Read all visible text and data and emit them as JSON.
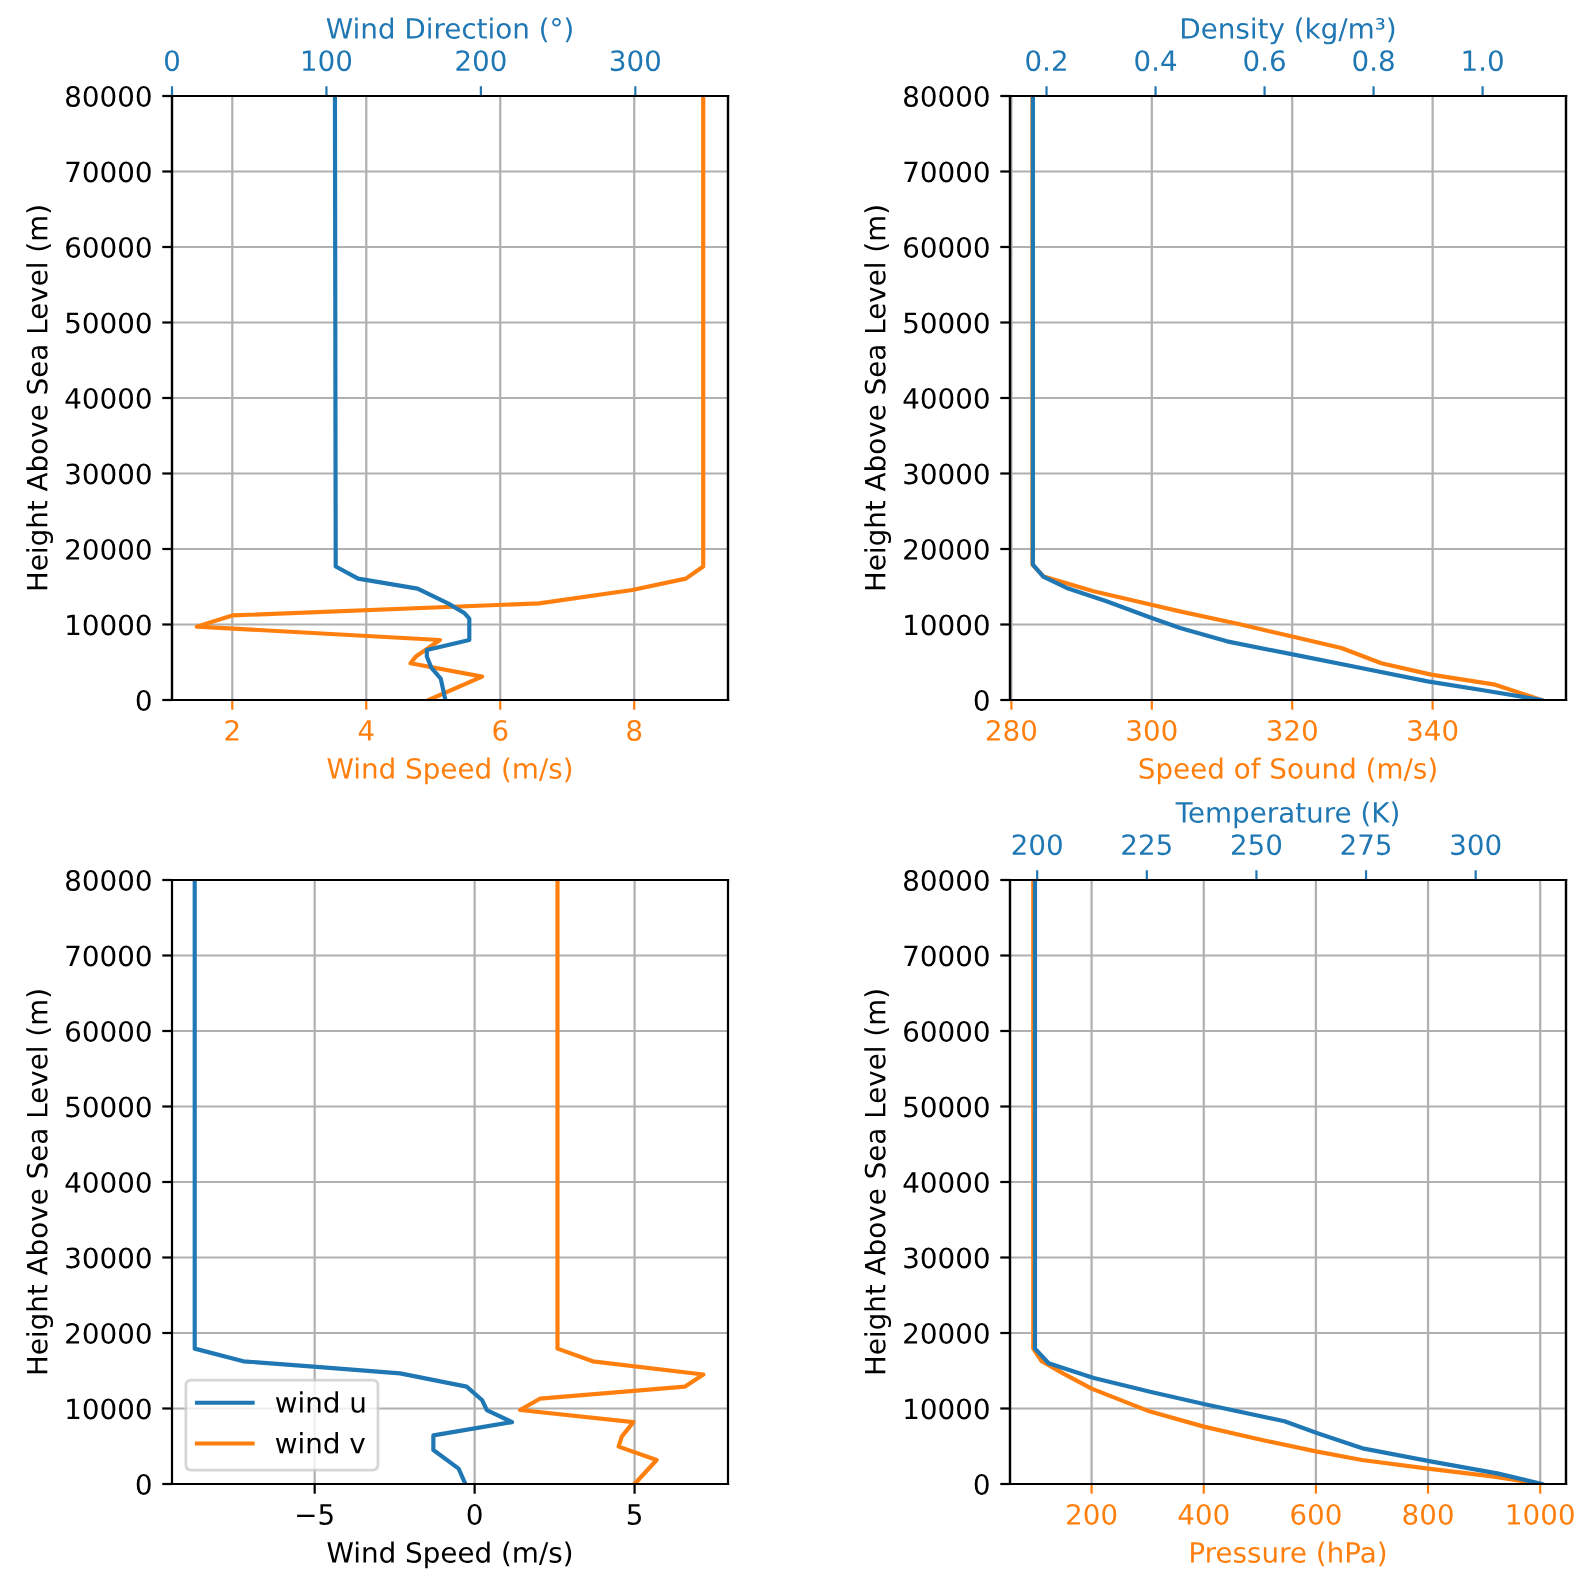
{
  "chart_data": [
    {
      "type": "line",
      "xlabel": "Wind Speed (m/s)",
      "x2label": "Wind Direction (°)",
      "ylabel": "Height Above Sea Level (m)",
      "xlim": [
        1.1,
        9.4
      ],
      "xticks": [
        2,
        4,
        6,
        8
      ],
      "x2lim": [
        0,
        360
      ],
      "x2ticks": [
        0,
        100,
        200,
        300
      ],
      "ylim": [
        0,
        80000
      ],
      "yticks": [
        0,
        10000,
        20000,
        30000,
        40000,
        50000,
        60000,
        70000,
        80000
      ],
      "grid": true,
      "series": [
        {
          "color": "#ff7f0e",
          "x": [
            4.93,
            5.73,
            4.66,
            4.74,
            5.1,
            1.47,
            2.0,
            6.58,
            7.97,
            8.77,
            9.03,
            9.03
          ],
          "values": [
            0,
            3100,
            4860,
            5750,
            7950,
            9720,
            11200,
            12800,
            14570,
            16080,
            17680,
            80000
          ]
        },
        {
          "color": "#1f77b4",
          "axis": "x2",
          "x": [
            177,
            174,
            168,
            165,
            165,
            192.5,
            192.5,
            189.5,
            178.7,
            159,
            120.5,
            106,
            105.5
          ],
          "values": [
            0,
            2840,
            4240,
            5750,
            6630,
            7950,
            10780,
            11480,
            12800,
            14750,
            16080,
            17680,
            80000
          ]
        }
      ]
    },
    {
      "type": "line",
      "xlabel": "Speed of Sound (m/s)",
      "x2label": "Density (kg/m³)",
      "ylabel": "Height Above Sea Level (m)",
      "xlim": [
        279.8,
        359
      ],
      "xticks": [
        280,
        300,
        320,
        340
      ],
      "x2lim": [
        0.133,
        1.153
      ],
      "x2ticks": [
        {
          "value": 0.2,
          "label": "0.2"
        },
        {
          "value": 0.4,
          "label": "0.4"
        },
        {
          "value": 0.6,
          "label": "0.6"
        },
        {
          "value": 0.8,
          "label": "0.8"
        },
        {
          "value": 1.0,
          "label": "1.0"
        }
      ],
      "ylim": [
        0,
        80000
      ],
      "yticks": [
        0,
        10000,
        20000,
        30000,
        40000,
        50000,
        60000,
        70000,
        80000
      ],
      "grid": true,
      "series": [
        {
          "color": "#ff7f0e",
          "x": [
            355.5,
            348.9,
            339.8,
            332.7,
            327,
            320,
            312.7,
            304,
            299.8,
            291.7,
            284.6,
            283,
            283
          ],
          "values": [
            0,
            2030,
            3360,
            4860,
            6890,
            8400,
            9990,
            11740,
            12640,
            14400,
            16350,
            17940,
            80000
          ]
        },
        {
          "color": "#1f77b4",
          "axis": "x2",
          "x": [
            1.107,
            0.998,
            0.899,
            0.777,
            0.654,
            0.531,
            0.445,
            0.393,
            0.31,
            0.237,
            0.194,
            0.175,
            0.175
          ],
          "values": [
            0,
            1330,
            2470,
            4240,
            6010,
            7770,
            9540,
            10870,
            13070,
            14840,
            16350,
            17940,
            80000
          ]
        }
      ]
    },
    {
      "type": "line",
      "xlabel": "Wind Speed (m/s)",
      "ylabel": "Height Above Sea Level (m)",
      "xlim": [
        -9.46,
        7.92
      ],
      "xticks": [
        {
          "value": -5,
          "label": "−5"
        },
        0,
        5
      ],
      "ylim": [
        0,
        80000
      ],
      "yticks": [
        0,
        10000,
        20000,
        30000,
        40000,
        50000,
        60000,
        70000,
        80000
      ],
      "grid": true,
      "legend": "bottom left",
      "series": [
        {
          "name": "wind u",
          "color": "#1f77b4",
          "x": [
            -0.29,
            -0.5,
            -1.29,
            -1.29,
            1.17,
            0.38,
            0.23,
            -0.25,
            -2.33,
            -5.04,
            -7.23,
            -8.75,
            -8.75
          ],
          "values": [
            0,
            2040,
            4500,
            6440,
            8200,
            9800,
            11130,
            12900,
            14650,
            15550,
            16250,
            17930,
            80000
          ]
        },
        {
          "name": "wind v",
          "color": "#ff7f0e",
          "x": [
            5.0,
            5.69,
            4.5,
            4.6,
            4.96,
            1.42,
            2.04,
            6.58,
            7.15,
            3.69,
            2.59,
            2.59
          ],
          "values": [
            0,
            3180,
            4950,
            6280,
            8200,
            9800,
            11300,
            12900,
            14500,
            16250,
            17930,
            80000
          ]
        }
      ]
    },
    {
      "type": "line",
      "xlabel": "Pressure (hPa)",
      "x2label": "Temperature (K)",
      "ylabel": "Height Above Sea Level (m)",
      "xlim": [
        54.5,
        1046
      ],
      "xticks": [
        200,
        400,
        600,
        800,
        1000
      ],
      "x2lim": [
        193.8,
        320.6
      ],
      "x2ticks": [
        200,
        225,
        250,
        275,
        300
      ],
      "ylim": [
        0,
        80000
      ],
      "yticks": [
        0,
        10000,
        20000,
        30000,
        40000,
        50000,
        60000,
        70000,
        80000
      ],
      "grid": true,
      "series": [
        {
          "color": "#ff7f0e",
          "x": [
            1000,
            918,
            800,
            682,
            600,
            504,
            400,
            303,
            200,
            149,
            111,
            96,
            96
          ],
          "values": [
            0,
            980,
            2040,
            3180,
            4320,
            5830,
            7600,
            9620,
            12640,
            14650,
            16250,
            17930,
            80000
          ]
        },
        {
          "color": "#1f77b4",
          "axis": "x2",
          "x": [
            315.1,
            304.9,
            289.7,
            274.5,
            264.1,
            256.4,
            238.5,
            226,
            212.9,
            202.6,
            199.5,
            199.5
          ],
          "values": [
            0,
            1410,
            3000,
            4680,
            6700,
            8300,
            10520,
            12190,
            14050,
            15990,
            17930,
            80000
          ]
        }
      ]
    }
  ]
}
